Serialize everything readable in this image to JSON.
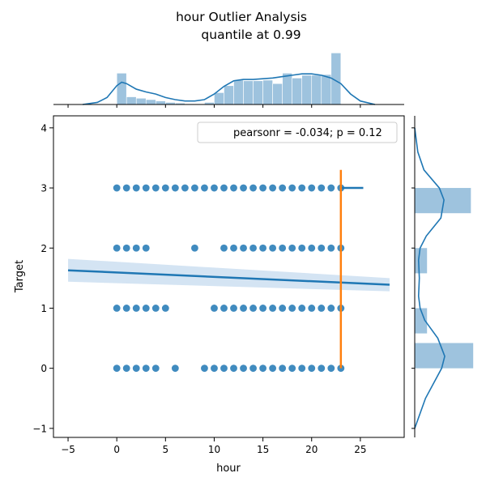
{
  "chart_data": {
    "type": "scatter",
    "title_line1": "hour Outlier Analysis",
    "title_line2": "quantile at 0.99",
    "xlabel": "hour",
    "ylabel": "Target",
    "xlim": [
      -6.5,
      29.5
    ],
    "ylim": [
      -1.15,
      4.2
    ],
    "xticks": [
      -5,
      0,
      5,
      10,
      15,
      20,
      25
    ],
    "yticks": [
      -1,
      0,
      1,
      2,
      3,
      4
    ],
    "legend_text": "pearsonr = -0.034; p = 0.12",
    "legend_position": "top-right",
    "colors": {
      "points": "#1f77b4",
      "hist": "#9ec3de",
      "vline": "#ff7f0e",
      "ci": "#c6dbef"
    },
    "points": {
      "y3": [
        0,
        1,
        2,
        3,
        4,
        5,
        6,
        7,
        8,
        9,
        10,
        11,
        12,
        13,
        14,
        15,
        16,
        17,
        18,
        19,
        20,
        21,
        22,
        23
      ],
      "y2": [
        0,
        1,
        2,
        3,
        8,
        11,
        12,
        13,
        14,
        15,
        16,
        17,
        18,
        19,
        20,
        21,
        22,
        23
      ],
      "y1": [
        0,
        1,
        2,
        3,
        4,
        5,
        10,
        11,
        12,
        13,
        14,
        15,
        16,
        17,
        18,
        19,
        20,
        21,
        22,
        23
      ],
      "y0": [
        0,
        1,
        2,
        3,
        4,
        6,
        9,
        10,
        11,
        12,
        13,
        14,
        15,
        16,
        17,
        18,
        19,
        20,
        21,
        22,
        23
      ]
    },
    "regression": {
      "x": [
        -5,
        28
      ],
      "y": [
        1.63,
        1.39
      ],
      "ci_upper": [
        1.82,
        1.5
      ],
      "ci_lower": [
        1.44,
        1.28
      ]
    },
    "outlier_line": {
      "x": 23,
      "y_range": [
        0,
        3.3
      ]
    },
    "marginal_x_hist": {
      "bin_edges": [
        0,
        1,
        2,
        3,
        4,
        5,
        6,
        7,
        8,
        9,
        10,
        11,
        12,
        13,
        14,
        15,
        16,
        17,
        18,
        19,
        20,
        21,
        22,
        23
      ],
      "heights": [
        0.45,
        0.11,
        0.09,
        0.07,
        0.05,
        0.03,
        0.02,
        0.01,
        0.01,
        0.03,
        0.17,
        0.27,
        0.35,
        0.34,
        0.34,
        0.35,
        0.3,
        0.45,
        0.38,
        0.42,
        0.42,
        0.43,
        0.74
      ],
      "kde_x": [
        -3.5,
        -2,
        -1,
        0,
        0.5,
        1,
        2,
        3,
        4,
        5,
        6,
        7,
        8,
        9,
        10,
        11,
        12,
        13,
        14,
        15,
        16,
        17,
        18,
        19,
        20,
        21,
        22,
        23,
        24,
        25,
        26.5
      ],
      "kde_y": [
        0,
        0.03,
        0.1,
        0.27,
        0.32,
        0.3,
        0.22,
        0.18,
        0.15,
        0.1,
        0.07,
        0.05,
        0.05,
        0.07,
        0.15,
        0.26,
        0.34,
        0.36,
        0.36,
        0.37,
        0.38,
        0.4,
        0.42,
        0.44,
        0.44,
        0.42,
        0.38,
        0.3,
        0.15,
        0.05,
        0
      ]
    },
    "marginal_y_hist": {
      "bars": [
        {
          "y0": 2.58,
          "y1": 3.0,
          "w": 0.73
        },
        {
          "y0": 1.58,
          "y1": 2.0,
          "w": 0.16
        },
        {
          "y0": 0.58,
          "y1": 1.0,
          "w": 0.16
        },
        {
          "y0": 0.0,
          "y1": 0.42,
          "w": 0.76
        }
      ],
      "kde_y": [
        -1.0,
        -0.5,
        0,
        0.2,
        0.5,
        0.8,
        1.0,
        1.2,
        1.5,
        1.8,
        2.0,
        2.2,
        2.5,
        2.8,
        3.0,
        3.3,
        3.6,
        4.0
      ],
      "kde_w": [
        0.0,
        0.14,
        0.35,
        0.39,
        0.3,
        0.13,
        0.07,
        0.05,
        0.06,
        0.05,
        0.07,
        0.15,
        0.34,
        0.38,
        0.32,
        0.12,
        0.04,
        0.0
      ]
    }
  }
}
